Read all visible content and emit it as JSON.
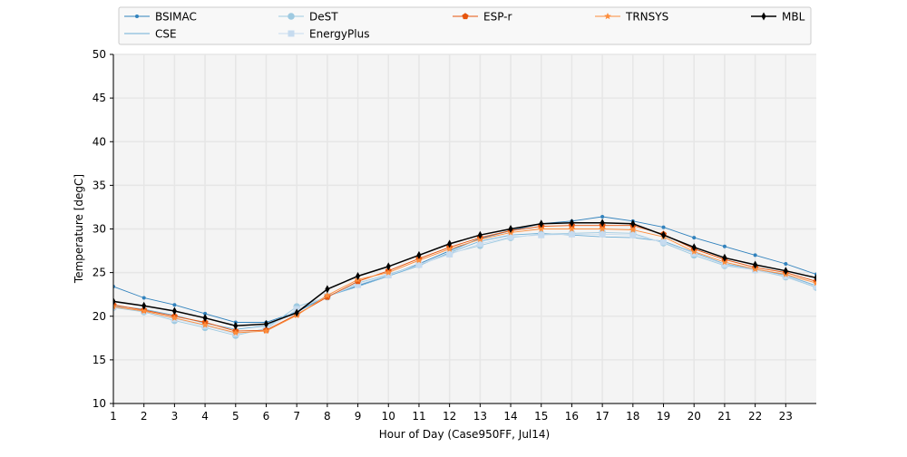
{
  "chart_data": {
    "type": "line",
    "title": "",
    "xlabel": "Hour of Day (Case950FF, Jul14)",
    "ylabel": "Temperature [degC]",
    "xlim": [
      1,
      24
    ],
    "ylim": [
      10,
      50
    ],
    "xticks": [
      1,
      2,
      3,
      4,
      5,
      6,
      7,
      8,
      9,
      10,
      11,
      12,
      13,
      14,
      15,
      16,
      17,
      18,
      19,
      20,
      21,
      22,
      23
    ],
    "yticks": [
      10,
      15,
      20,
      25,
      30,
      35,
      40,
      45,
      50
    ],
    "grid": true,
    "legend_placement": "top",
    "x": [
      1,
      2,
      3,
      4,
      5,
      6,
      7,
      8,
      9,
      10,
      11,
      12,
      13,
      14,
      15,
      16,
      17,
      18,
      19,
      20,
      21,
      22,
      23,
      24
    ],
    "series": [
      {
        "name": "BSIMAC",
        "color": "#3182bd",
        "marker": "dot",
        "values": [
          23.4,
          22.1,
          21.3,
          20.3,
          19.3,
          19.3,
          20.5,
          22.3,
          23.5,
          24.7,
          26.0,
          27.5,
          28.9,
          29.8,
          30.6,
          30.9,
          31.4,
          30.9,
          30.2,
          29.0,
          28.0,
          27.0,
          26.0,
          24.8
        ]
      },
      {
        "name": "CSE",
        "color": "#6baed6",
        "marker": "pixel",
        "values": [
          21.2,
          20.8,
          20.1,
          19.2,
          18.5,
          18.9,
          20.6,
          22.3,
          23.4,
          24.6,
          25.8,
          27.3,
          28.6,
          29.3,
          29.5,
          29.3,
          29.1,
          29.0,
          28.6,
          27.3,
          26.0,
          25.4,
          24.7,
          23.5
        ]
      },
      {
        "name": "DeST",
        "color": "#9ecae1",
        "marker": "circle",
        "values": [
          21.0,
          20.5,
          19.5,
          18.7,
          17.8,
          18.6,
          21.1,
          22.2,
          23.8,
          24.8,
          25.9,
          27.2,
          28.1,
          29.0,
          29.4,
          29.5,
          29.6,
          29.5,
          28.4,
          27.0,
          25.8,
          25.3,
          24.5,
          23.3
        ]
      },
      {
        "name": "EnergyPlus",
        "color": "#c6dbef",
        "marker": "square",
        "values": [
          21.1,
          20.6,
          19.7,
          18.9,
          18.0,
          18.5,
          20.8,
          22.3,
          23.6,
          24.7,
          25.9,
          27.1,
          28.3,
          29.1,
          29.3,
          29.4,
          29.4,
          29.3,
          28.5,
          27.2,
          25.9,
          25.3,
          24.6,
          23.4
        ]
      },
      {
        "name": "ESP-r",
        "color": "#e6550d",
        "marker": "pentagon",
        "values": [
          21.3,
          20.7,
          20.0,
          19.3,
          18.3,
          18.4,
          20.2,
          22.2,
          24.0,
          25.2,
          26.6,
          27.9,
          29.0,
          29.8,
          30.3,
          30.4,
          30.4,
          30.4,
          29.4,
          27.7,
          26.5,
          25.6,
          25.0,
          24.0
        ]
      },
      {
        "name": "TRNSYS",
        "color": "#fd8d3c",
        "marker": "star",
        "values": [
          21.1,
          20.6,
          19.8,
          19.0,
          18.1,
          18.3,
          20.1,
          22.4,
          24.2,
          25.0,
          26.4,
          27.7,
          28.8,
          29.6,
          30.0,
          30.0,
          30.0,
          29.9,
          29.1,
          27.4,
          26.2,
          25.4,
          24.8,
          23.8
        ]
      },
      {
        "name": "MBL",
        "color": "#000000",
        "marker": "diamond",
        "values": [
          21.7,
          21.2,
          20.6,
          19.8,
          18.9,
          19.1,
          20.4,
          23.1,
          24.6,
          25.7,
          27.0,
          28.3,
          29.3,
          30.0,
          30.6,
          30.7,
          30.7,
          30.6,
          29.3,
          27.9,
          26.7,
          25.9,
          25.2,
          24.4
        ]
      }
    ]
  }
}
